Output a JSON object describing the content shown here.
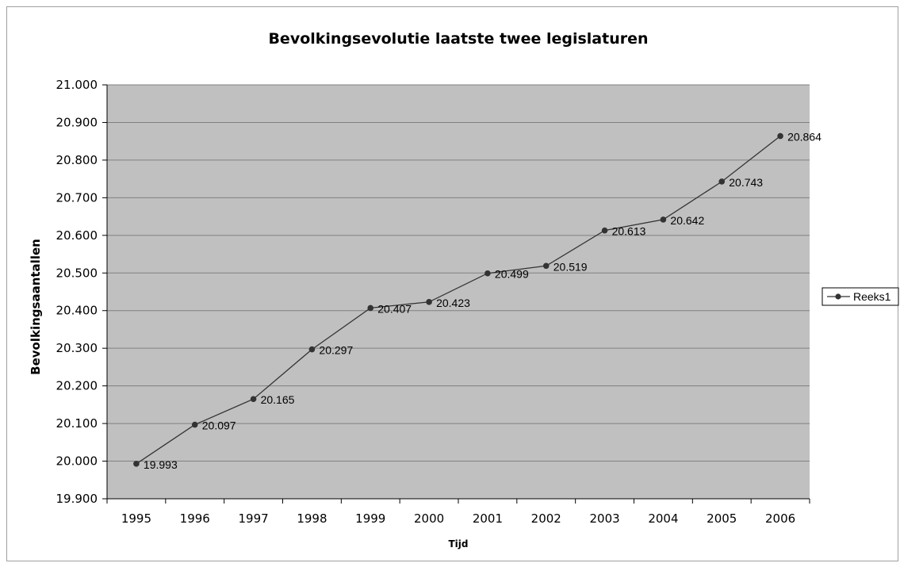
{
  "chart_data": {
    "type": "line",
    "title": "Bevolkingsevolutie laatste twee legislaturen",
    "xlabel": "Tijd",
    "ylabel": "Bevolkingsaantallen",
    "categories": [
      "1995",
      "1996",
      "1997",
      "1998",
      "1999",
      "2000",
      "2001",
      "2002",
      "2003",
      "2004",
      "2005",
      "2006"
    ],
    "series": [
      {
        "name": "Reeks1",
        "values": [
          19993,
          20097,
          20165,
          20297,
          20407,
          20423,
          20499,
          20519,
          20613,
          20642,
          20743,
          20864
        ],
        "data_labels": [
          "19.993",
          "20.097",
          "20.165",
          "20.297",
          "20.407",
          "20.423",
          "20.499",
          "20.519",
          "20.613",
          "20.642",
          "20.743",
          "20.864"
        ]
      }
    ],
    "ylim": [
      19900,
      21000
    ],
    "y_ticks": [
      19900,
      20000,
      20100,
      20200,
      20300,
      20400,
      20500,
      20600,
      20700,
      20800,
      20900,
      21000
    ],
    "y_tick_labels": [
      "19.900",
      "20.000",
      "20.100",
      "20.200",
      "20.300",
      "20.400",
      "20.500",
      "20.600",
      "20.700",
      "20.800",
      "20.900",
      "21.000"
    ],
    "grid": true,
    "legend": "right",
    "colors": {
      "plot_background": "#c0c0c0",
      "gridline": "#808080",
      "line": "#333333",
      "marker": "#333333"
    }
  }
}
